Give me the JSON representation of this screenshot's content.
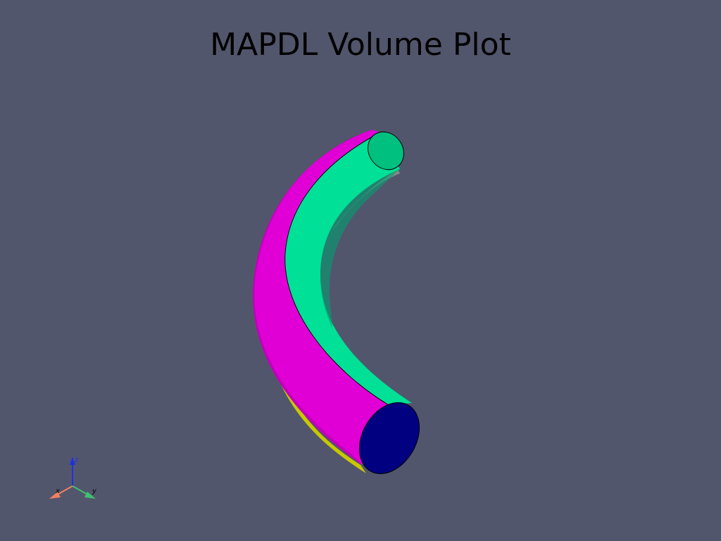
{
  "title": "MAPDL Volume Plot",
  "background_color": "#52566c",
  "volume": {
    "shape": "curved pipe segment",
    "colors": {
      "outer_face": "#e000d6",
      "inner_face": "#00e096",
      "end_cap_bottom": "#000080",
      "end_cap_top": "#00e096",
      "underside": "#c8c800"
    }
  },
  "axes": {
    "x_label": "x",
    "y_label": "y",
    "z_label": "z",
    "x_color": "#f08060",
    "y_color": "#40c070",
    "z_color": "#2030e0"
  }
}
